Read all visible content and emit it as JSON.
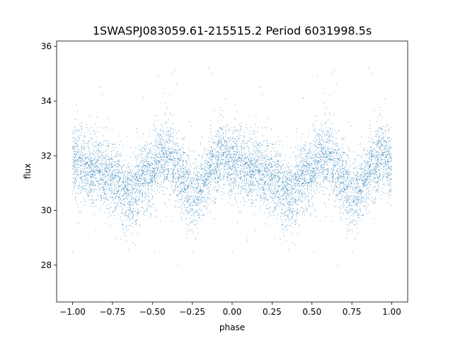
{
  "chart_data": {
    "type": "scatter",
    "title": "1SWASPJ083059.61-215515.2 Period 6031998.5s",
    "xlabel": "phase",
    "ylabel": "flux",
    "xlim": [
      -1.1,
      1.1
    ],
    "ylim": [
      26.65,
      36.2
    ],
    "x_ticks": [
      {
        "value": -1.0,
        "label": "−1.00"
      },
      {
        "value": -0.75,
        "label": "−0.75"
      },
      {
        "value": -0.5,
        "label": "−0.50"
      },
      {
        "value": -0.25,
        "label": "−0.25"
      },
      {
        "value": 0.0,
        "label": "0.00"
      },
      {
        "value": 0.25,
        "label": "0.25"
      },
      {
        "value": 0.5,
        "label": "0.50"
      },
      {
        "value": 0.75,
        "label": "0.75"
      },
      {
        "value": 1.0,
        "label": "1.00"
      }
    ],
    "y_ticks": [
      {
        "value": 28,
        "label": "28"
      },
      {
        "value": 30,
        "label": "30"
      },
      {
        "value": 32,
        "label": "32"
      },
      {
        "value": 34,
        "label": "34"
      },
      {
        "value": 36,
        "label": "36"
      }
    ],
    "grid": false,
    "legend": "none",
    "series_color": "#1f77b4",
    "profile_phase": [
      0.0,
      0.05,
      0.1,
      0.15,
      0.2,
      0.25,
      0.3,
      0.35,
      0.4,
      0.45,
      0.5,
      0.55,
      0.6,
      0.65,
      0.7,
      0.75,
      0.8,
      0.85,
      0.9,
      0.95,
      1.0
    ],
    "profile_mean_flux": [
      31.9,
      31.6,
      31.5,
      31.6,
      31.4,
      31.2,
      30.9,
      30.6,
      30.8,
      31.2,
      31.5,
      31.9,
      32.0,
      31.6,
      31.0,
      30.6,
      30.8,
      31.3,
      31.8,
      32.0,
      31.5
    ],
    "scatter_sd": 0.65,
    "point_count": 9000
  }
}
